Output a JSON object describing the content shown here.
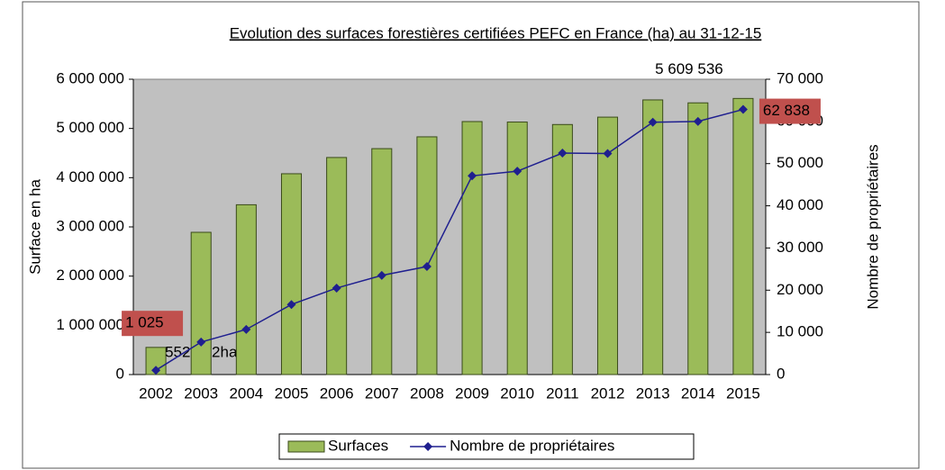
{
  "chart_data": {
    "type": "bar",
    "title": "Evolution des surfaces forestières certifiées PEFC en France (ha) au 31-12-15",
    "ylabel": "Surface en ha",
    "y2label": "Nombre de propriétaires",
    "categories": [
      "2002",
      "2003",
      "2004",
      "2005",
      "2006",
      "2007",
      "2008",
      "2009",
      "2010",
      "2011",
      "2012",
      "2013",
      "2014",
      "2015"
    ],
    "series": [
      {
        "name": "Surfaces",
        "type": "bar",
        "color": "#9bbb59",
        "values": [
          552062,
          2890000,
          3450000,
          4080000,
          4410000,
          4590000,
          4830000,
          5140000,
          5130000,
          5080000,
          5230000,
          5580000,
          5520000,
          5609536
        ],
        "value_labels": [
          "552 062ha",
          null,
          null,
          null,
          null,
          null,
          null,
          null,
          null,
          null,
          null,
          null,
          null,
          "5 609 536"
        ]
      },
      {
        "name": "Nombre de propriétaires",
        "type": "line",
        "axis": "y2",
        "color": "#1f1f8f",
        "values": [
          1025,
          7700,
          10700,
          16600,
          20500,
          23500,
          25600,
          47100,
          48200,
          52500,
          52400,
          59800,
          60000,
          62838
        ],
        "value_labels": [
          "1 025",
          null,
          null,
          null,
          null,
          null,
          null,
          null,
          null,
          null,
          null,
          null,
          null,
          "62 838"
        ]
      }
    ],
    "ylim": [
      0,
      6000000
    ],
    "yticks": [
      0,
      {
        "value": 1000000,
        "label": "1 000 000"
      },
      {
        "value": 2000000,
        "label": "2 000 000"
      },
      {
        "value": 3000000,
        "label": "3 000 000"
      },
      {
        "value": 4000000,
        "label": "4 000 000"
      },
      {
        "value": 5000000,
        "label": "5 000 000"
      },
      {
        "value": 6000000,
        "label": "6 000 000"
      }
    ],
    "y2lim": [
      0,
      70000
    ],
    "y2ticks": [
      0,
      {
        "value": 10000,
        "label": "10 000"
      },
      {
        "value": 20000,
        "label": "20 000"
      },
      {
        "value": 30000,
        "label": "30 000"
      },
      {
        "value": 40000,
        "label": "40 000"
      },
      {
        "value": 50000,
        "label": "50 000"
      },
      {
        "value": 60000,
        "label": "60 000"
      },
      {
        "value": 70000,
        "label": "70 000"
      }
    ],
    "grid": false,
    "legend": "bottom"
  }
}
